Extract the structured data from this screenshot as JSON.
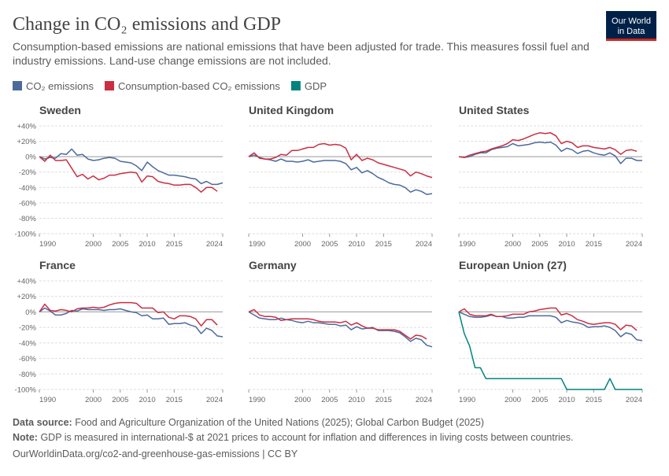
{
  "title": "Change in CO₂ emissions and GDP",
  "subtitle": "Consumption-based emissions are national emissions that have been adjusted for trade. This measures fossil fuel and industry emissions. Land-use change emissions are not included.",
  "logo": [
    "Our World",
    "in Data"
  ],
  "footer": {
    "source_label": "Data source:",
    "source": "Food and Agriculture Organization of the United Nations (2025); Global Carbon Budget (2025)",
    "note_label": "Note:",
    "note": "GDP is measured in international-$ at 2021 prices to account for inflation and differences in living costs between countries.",
    "url": "OurWorldinData.org/co2-and-greenhouse-gas-emissions | CC BY"
  },
  "chart_data": [
    {
      "type": "line",
      "title": "Sweden",
      "xlim": [
        1990,
        2024
      ],
      "xticks": [
        1990,
        2000,
        2005,
        2010,
        2015,
        2024
      ],
      "ylim": [
        -100,
        40
      ],
      "yticks": [
        {
          "value": 40,
          "label": "+40%"
        },
        {
          "value": 20,
          "label": "+20%"
        },
        {
          "value": 0,
          "label": "0%"
        },
        {
          "value": -20,
          "label": "-20%"
        },
        {
          "value": -40,
          "label": "-40%"
        },
        {
          "value": -60,
          "label": "-60%"
        },
        {
          "value": -80,
          "label": "-80%"
        },
        {
          "value": -100,
          "label": "-100%"
        }
      ],
      "x": [
        1990,
        1991,
        1992,
        1993,
        1994,
        1995,
        1996,
        1997,
        1998,
        1999,
        2000,
        2001,
        2002,
        2003,
        2004,
        2005,
        2006,
        2007,
        2008,
        2009,
        2010,
        2011,
        2012,
        2013,
        2014,
        2015,
        2016,
        2017,
        2018,
        2019,
        2020,
        2021,
        2022,
        2023,
        2024
      ],
      "series": [
        {
          "name": "CO₂ emissions",
          "color": "#4c6a9c",
          "values": [
            0,
            -3,
            -1,
            -2,
            4,
            3,
            10,
            2,
            3,
            -3,
            -5,
            -4,
            -2,
            -1,
            -2,
            -6,
            -7,
            -8,
            -12,
            -18,
            -7,
            -13,
            -18,
            -21,
            -24,
            -24,
            -25,
            -26,
            -28,
            -29,
            -35,
            -32,
            -36,
            -36,
            -34
          ]
        },
        {
          "name": "Consumption-based CO₂ emissions",
          "color": "#ca2e43",
          "values": [
            0,
            -6,
            2,
            -5,
            -5,
            -4,
            -15,
            -26,
            -23,
            -29,
            -25,
            -30,
            -28,
            -24,
            -24,
            -22,
            -21,
            -20,
            -21,
            -33,
            -25,
            -26,
            -32,
            -34,
            -35,
            -37,
            -37,
            -36,
            -36,
            -40,
            -46,
            -40,
            -40,
            -45,
            null
          ]
        }
      ]
    },
    {
      "type": "line",
      "title": "United Kingdom",
      "xlim": [
        1990,
        2024
      ],
      "xticks": [
        1990,
        2000,
        2005,
        2010,
        2015,
        2024
      ],
      "ylim": [
        -100,
        40
      ],
      "yticks": [
        40,
        20,
        0,
        -20,
        -40,
        -60,
        -80,
        -100
      ],
      "x": [
        1990,
        1991,
        1992,
        1993,
        1994,
        1995,
        1996,
        1997,
        1998,
        1999,
        2000,
        2001,
        2002,
        2003,
        2004,
        2005,
        2006,
        2007,
        2008,
        2009,
        2010,
        2011,
        2012,
        2013,
        2014,
        2015,
        2016,
        2017,
        2018,
        2019,
        2020,
        2021,
        2022,
        2023,
        2024
      ],
      "series": [
        {
          "name": "CO₂ emissions",
          "color": "#4c6a9c",
          "values": [
            0,
            2,
            -1,
            -3,
            -4,
            -6,
            -3,
            -6,
            -6,
            -7,
            -6,
            -4,
            -7,
            -6,
            -5,
            -5,
            -5,
            -6,
            -9,
            -17,
            -14,
            -21,
            -18,
            -22,
            -27,
            -30,
            -34,
            -36,
            -37,
            -40,
            -46,
            -43,
            -45,
            -49,
            -48
          ]
        },
        {
          "name": "Consumption-based CO₂ emissions",
          "color": "#ca2e43",
          "values": [
            0,
            5,
            -2,
            -3,
            -3,
            -1,
            3,
            2,
            8,
            8,
            10,
            12,
            12,
            16,
            17,
            15,
            16,
            15,
            11,
            -4,
            3,
            -5,
            -2,
            -4,
            -8,
            -10,
            -12,
            -14,
            -16,
            -18,
            -25,
            -20,
            -22,
            -25,
            -27
          ]
        }
      ]
    },
    {
      "type": "line",
      "title": "United States",
      "xlim": [
        1990,
        2024
      ],
      "xticks": [
        1990,
        2000,
        2005,
        2010,
        2015,
        2024
      ],
      "ylim": [
        -100,
        40
      ],
      "yticks": [
        40,
        20,
        0,
        -20,
        -40,
        -60,
        -80,
        -100
      ],
      "x": [
        1990,
        1991,
        1992,
        1993,
        1994,
        1995,
        1996,
        1997,
        1998,
        1999,
        2000,
        2001,
        2002,
        2003,
        2004,
        2005,
        2006,
        2007,
        2008,
        2009,
        2010,
        2011,
        2012,
        2013,
        2014,
        2015,
        2016,
        2017,
        2018,
        2019,
        2020,
        2021,
        2022,
        2023,
        2024
      ],
      "series": [
        {
          "name": "CO₂ emissions",
          "color": "#4c6a9c",
          "values": [
            0,
            -1,
            0,
            3,
            5,
            5,
            9,
            11,
            12,
            13,
            17,
            14,
            15,
            16,
            18,
            19,
            18,
            19,
            15,
            7,
            11,
            9,
            4,
            7,
            8,
            5,
            3,
            2,
            5,
            1,
            -9,
            -2,
            -2,
            -5,
            -5
          ]
        },
        {
          "name": "Consumption-based CO₂ emissions",
          "color": "#ca2e43",
          "values": [
            0,
            -1,
            2,
            4,
            6,
            7,
            10,
            12,
            14,
            17,
            22,
            21,
            23,
            26,
            29,
            31,
            30,
            31,
            27,
            17,
            20,
            18,
            12,
            14,
            14,
            12,
            11,
            10,
            12,
            9,
            3,
            8,
            9,
            7,
            null
          ]
        }
      ]
    },
    {
      "type": "line",
      "title": "France",
      "xlim": [
        1990,
        2024
      ],
      "xticks": [
        1990,
        2000,
        2005,
        2010,
        2015,
        2024
      ],
      "ylim": [
        -100,
        40
      ],
      "yticks": [
        {
          "value": 40,
          "label": "+40%"
        },
        {
          "value": 20,
          "label": "+20%"
        },
        {
          "value": 0,
          "label": "0%"
        },
        {
          "value": -20,
          "label": "-20%"
        },
        {
          "value": -40,
          "label": "-40%"
        },
        {
          "value": -60,
          "label": "-60%"
        },
        {
          "value": -80,
          "label": "-80%"
        },
        {
          "value": -100,
          "label": "-100%"
        }
      ],
      "x": [
        1990,
        1991,
        1992,
        1993,
        1994,
        1995,
        1996,
        1997,
        1998,
        1999,
        2000,
        2001,
        2002,
        2003,
        2004,
        2005,
        2006,
        2007,
        2008,
        2009,
        2010,
        2011,
        2012,
        2013,
        2014,
        2015,
        2016,
        2017,
        2018,
        2019,
        2020,
        2021,
        2022,
        2023,
        2024
      ],
      "series": [
        {
          "name": "CO₂ emissions",
          "color": "#4c6a9c",
          "values": [
            0,
            5,
            1,
            -4,
            -4,
            -2,
            2,
            1,
            4,
            3,
            3,
            3,
            2,
            3,
            3,
            4,
            2,
            0,
            -1,
            -5,
            -4,
            -9,
            -9,
            -8,
            -16,
            -15,
            -15,
            -14,
            -17,
            -19,
            -28,
            -21,
            -24,
            -31,
            -32
          ]
        },
        {
          "name": "Consumption-based CO₂ emissions",
          "color": "#ca2e43",
          "values": [
            0,
            10,
            2,
            1,
            3,
            2,
            0,
            4,
            5,
            5,
            6,
            5,
            6,
            9,
            11,
            12,
            12,
            12,
            11,
            5,
            5,
            5,
            -1,
            0,
            -7,
            -9,
            -5,
            -5,
            -6,
            -9,
            -18,
            -10,
            -10,
            -17,
            null
          ]
        }
      ]
    },
    {
      "type": "line",
      "title": "Germany",
      "xlim": [
        1990,
        2024
      ],
      "xticks": [
        1990,
        2000,
        2005,
        2010,
        2015,
        2024
      ],
      "ylim": [
        -100,
        40
      ],
      "yticks": [
        40,
        20,
        0,
        -20,
        -40,
        -60,
        -80,
        -100
      ],
      "x": [
        1990,
        1991,
        1992,
        1993,
        1994,
        1995,
        1996,
        1997,
        1998,
        1999,
        2000,
        2001,
        2002,
        2003,
        2004,
        2005,
        2006,
        2007,
        2008,
        2009,
        2010,
        2011,
        2012,
        2013,
        2014,
        2015,
        2016,
        2017,
        2018,
        2019,
        2020,
        2021,
        2022,
        2023,
        2024
      ],
      "series": [
        {
          "name": "CO₂ emissions",
          "color": "#4c6a9c",
          "values": [
            0,
            -4,
            -8,
            -9,
            -10,
            -10,
            -8,
            -10,
            -11,
            -13,
            -14,
            -12,
            -14,
            -14,
            -15,
            -16,
            -16,
            -18,
            -17,
            -23,
            -19,
            -22,
            -21,
            -20,
            -24,
            -24,
            -24,
            -25,
            -27,
            -32,
            -38,
            -34,
            -36,
            -43,
            -45
          ]
        },
        {
          "name": "Consumption-based CO₂ emissions",
          "color": "#ca2e43",
          "values": [
            0,
            3,
            -4,
            -6,
            -6,
            -7,
            -11,
            -10,
            -9,
            -9,
            -9,
            -9,
            -10,
            -12,
            -13,
            -13,
            -13,
            -14,
            -12,
            -17,
            -14,
            -18,
            -21,
            -21,
            -23,
            -23,
            -23,
            -23,
            -25,
            -30,
            -35,
            -30,
            -31,
            -35,
            null
          ]
        }
      ]
    },
    {
      "type": "line",
      "title": "European Union (27)",
      "xlim": [
        1990,
        2024
      ],
      "xticks": [
        1990,
        2000,
        2005,
        2010,
        2015,
        2024
      ],
      "ylim": [
        -100,
        40
      ],
      "yticks": [
        40,
        20,
        0,
        -20,
        -40,
        -60,
        -80,
        -100
      ],
      "x": [
        1990,
        1991,
        1992,
        1993,
        1994,
        1995,
        1996,
        1997,
        1998,
        1999,
        2000,
        2001,
        2002,
        2003,
        2004,
        2005,
        2006,
        2007,
        2008,
        2009,
        2010,
        2011,
        2012,
        2013,
        2014,
        2015,
        2016,
        2017,
        2018,
        2019,
        2020,
        2021,
        2022,
        2023,
        2024
      ],
      "series": [
        {
          "name": "CO₂ emissions",
          "color": "#4c6a9c",
          "values": [
            0,
            -3,
            -6,
            -7,
            -7,
            -6,
            -4,
            -6,
            -6,
            -8,
            -8,
            -7,
            -7,
            -5,
            -5,
            -5,
            -5,
            -5,
            -7,
            -14,
            -11,
            -13,
            -14,
            -16,
            -20,
            -19,
            -19,
            -18,
            -20,
            -24,
            -32,
            -27,
            -29,
            -36,
            -37
          ]
        },
        {
          "name": "Consumption-based CO₂ emissions",
          "color": "#ca2e43",
          "values": [
            0,
            4,
            -3,
            -5,
            -5,
            -5,
            -3,
            -6,
            -6,
            -5,
            -3,
            -3,
            -3,
            0,
            1,
            3,
            4,
            5,
            5,
            -4,
            -2,
            -5,
            -10,
            -12,
            -15,
            -16,
            -15,
            -14,
            -14,
            -16,
            -23,
            -17,
            -18,
            -24,
            null
          ]
        },
        {
          "name": "GDP",
          "color": "#00847e",
          "values": [
            0,
            -28,
            -44,
            -72,
            -72,
            -86,
            -86,
            -86,
            -86,
            -86,
            -86,
            -86,
            -86,
            -86,
            -86,
            -86,
            -86,
            -86,
            -86,
            -86,
            -100,
            -100,
            -100,
            -100,
            -100,
            -100,
            -100,
            -100,
            -86,
            -100,
            -100,
            -100,
            -100,
            -100,
            -100
          ]
        }
      ]
    }
  ]
}
